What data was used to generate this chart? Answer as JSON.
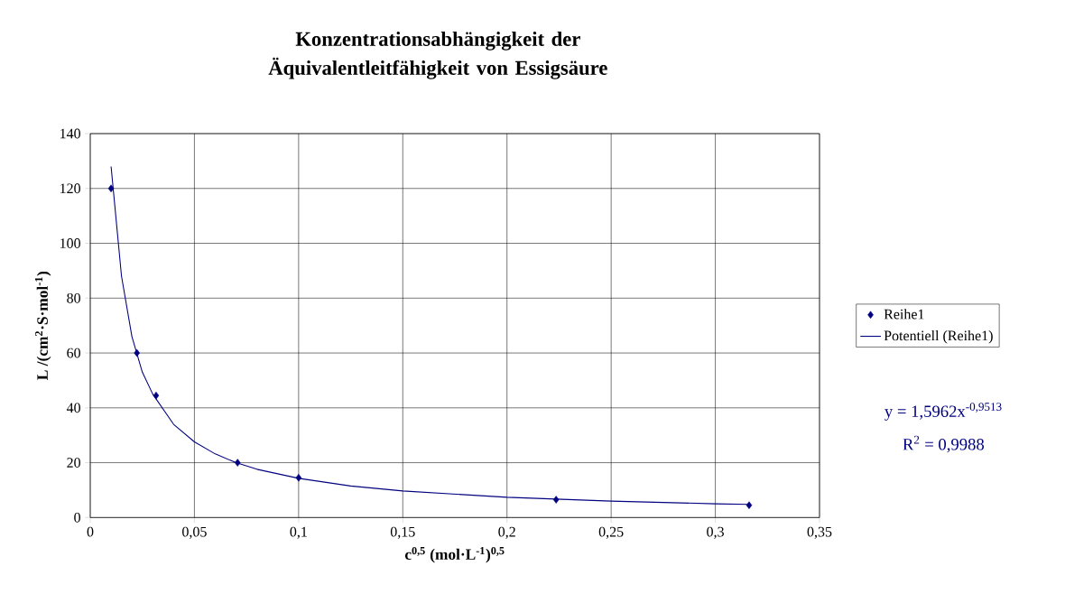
{
  "chart_data": {
    "type": "scatter",
    "title": "Konzentrationsabhängigkeit der Äquivalentleitfähigkeit von Essigsäure",
    "xlabel": "c$^{0,5}$ (mol·L$^{-1}$)$^{0,5}$",
    "ylabel": "L /(cm$^{2}$·S·mol$^{-1}$)",
    "xlim": [
      0,
      0.35
    ],
    "ylim": [
      0,
      140
    ],
    "xticks": [
      0,
      {
        "value": 0.05,
        "label": "0,05"
      },
      {
        "value": 0.1,
        "label": "0,1"
      },
      {
        "value": 0.15,
        "label": "0,15"
      },
      {
        "value": 0.2,
        "label": "0,2"
      },
      {
        "value": 0.25,
        "label": "0,25"
      },
      {
        "value": 0.3,
        "label": "0,3"
      },
      {
        "value": 0.35,
        "label": "0,35"
      }
    ],
    "yticks": [
      0,
      20,
      40,
      60,
      80,
      100,
      120,
      140
    ],
    "grid": true,
    "legend": "right",
    "series": [
      {
        "name": "Reihe1",
        "marker": "diamond",
        "color": "#000080",
        "x": [
          0.01,
          0.0224,
          0.0316,
          0.0707,
          0.1,
          0.2236,
          0.3162
        ],
        "values": [
          120,
          60,
          44.5,
          20,
          14.5,
          6.5,
          4.5
        ]
      },
      {
        "name": "Potentiell (Reihe1)",
        "type": "line",
        "marker": "none",
        "color": "#000080",
        "x": [
          0.01,
          0.015,
          0.02,
          0.025,
          0.03,
          0.04,
          0.05,
          0.06,
          0.07,
          0.08,
          0.1,
          0.125,
          0.15,
          0.2,
          0.25,
          0.3,
          0.316
        ],
        "values": [
          128,
          88,
          66,
          53,
          45,
          34,
          27.6,
          23.2,
          20,
          17.6,
          14.3,
          11.5,
          9.7,
          7.4,
          6,
          5,
          4.8
        ]
      }
    ],
    "annotations": [
      "y = 1,5962x$^{-0,9513}$",
      "R$^{2}$ = 0,9988"
    ]
  }
}
